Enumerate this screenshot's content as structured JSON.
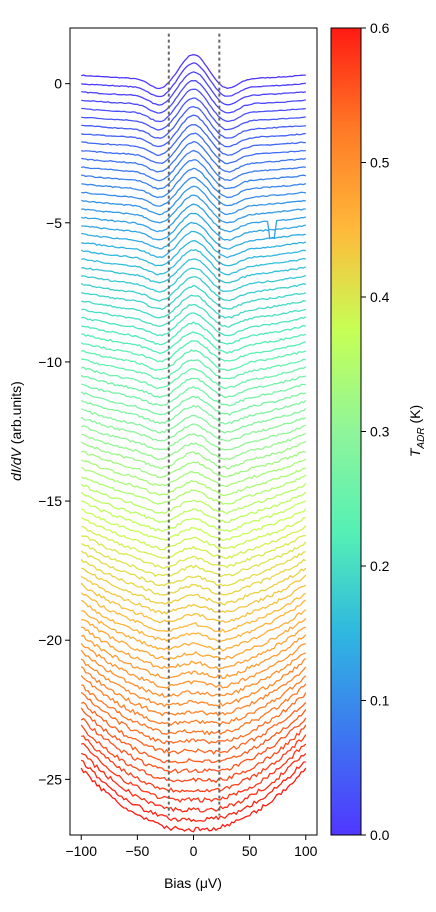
{
  "chart_data": {
    "type": "line",
    "title": "",
    "xlabel": "Bias (μV)",
    "ylabel_parts": [
      {
        "text": "dI/dV",
        "italic": true
      },
      {
        "text": " (arb.units)",
        "italic": false
      }
    ],
    "xlim": [
      -110,
      110
    ],
    "ylim": [
      -27,
      2
    ],
    "xticks": [
      -100,
      -50,
      0,
      50,
      100
    ],
    "xtick_labels": [
      "−100",
      "−50",
      "0",
      "50",
      "100"
    ],
    "yticks": [
      0,
      -5,
      -10,
      -15,
      -20,
      -25
    ],
    "ytick_labels": [
      "0",
      "−5",
      "−10",
      "−15",
      "−20",
      "−25"
    ],
    "grid": false,
    "vlines": [
      -22,
      23
    ],
    "vline_style": "dashed grey",
    "series_count": 84,
    "series_offset_step": -0.3,
    "x_range": [
      -100,
      100
    ],
    "peak_x": 0,
    "first_trace_y": {
      "edge": 0.3,
      "peak": 0.7,
      "shoulder": -0.15
    },
    "last_trace_y": {
      "edge": -23.9,
      "center": -25.6
    },
    "glitch": {
      "x": 70,
      "trace_index": 17
    },
    "colorbar": {
      "colormap": "rainbow",
      "label_main": "T",
      "label_sub": "ADR",
      "label_unit": " (K)",
      "range": [
        0.0,
        0.6
      ],
      "ticks": [
        0.0,
        0.1,
        0.2,
        0.3,
        0.4,
        0.5,
        0.6
      ],
      "tick_labels": [
        "0.0",
        "0.1",
        "0.2",
        "0.3",
        "0.4",
        "0.5",
        "0.6"
      ],
      "colors": [
        "#5037ff",
        "#3d77f0",
        "#2fb7e0",
        "#55f0b5",
        "#8ff59a",
        "#c6ff55",
        "#ffb93a",
        "#ff7a26",
        "#ff1a12"
      ]
    }
  }
}
